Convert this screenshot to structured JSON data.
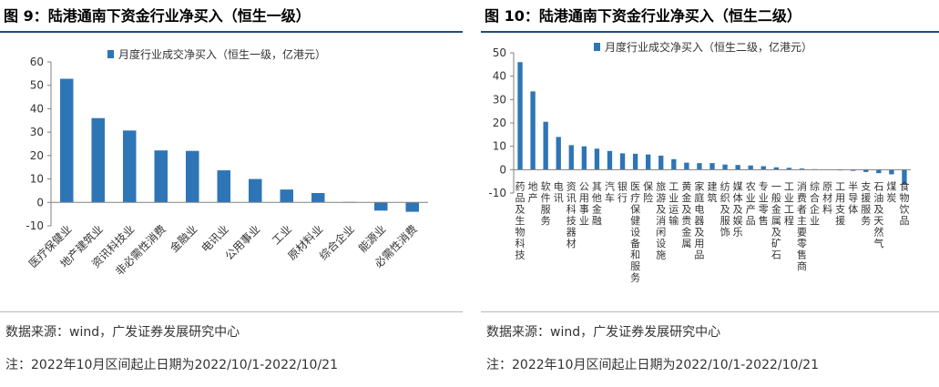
{
  "figure_left": {
    "title": "图 9：陆港通南下资金行业净买入（恒生一级）",
    "source": "数据来源：wind，广发证券发展研究中心",
    "note": "注：2022年10月区间起止日期为2022/10/1-2022/10/21"
  },
  "figure_right": {
    "title": "图 10：陆港通南下资金行业净买入（恒生二级）",
    "source": "数据来源：wind，广发证券发展研究中心",
    "note": "注：2022年10月区间起止日期为2022/10/1-2022/10/21"
  },
  "colors": {
    "bar": "#2e75b6",
    "axis": "#808080",
    "title_rule": "#1f4e79"
  },
  "chart_data": [
    {
      "type": "bar",
      "title": "",
      "xlabel": "",
      "ylabel": "",
      "legend": "top-center",
      "grid": false,
      "ylim": [
        -10,
        60
      ],
      "yticks": [
        -10,
        0,
        10,
        20,
        30,
        40,
        50,
        60
      ],
      "series": [
        {
          "name": "月度行业成交净买入（恒生一级，亿港元）"
        }
      ],
      "categories": [
        "医疗保健业",
        "地产建筑业",
        "资讯科技业",
        "非必需性消费",
        "金融业",
        "电讯业",
        "公用事业",
        "工业",
        "原材料业",
        "综合企业",
        "能源业",
        "必需性消费"
      ],
      "values": [
        52.8,
        36.0,
        30.7,
        22.2,
        22.0,
        13.7,
        10.0,
        5.5,
        4.0,
        0.2,
        -3.5,
        -4.0
      ]
    },
    {
      "type": "bar",
      "title": "",
      "xlabel": "",
      "ylabel": "",
      "legend": "top-center",
      "grid": false,
      "ylim": [
        -10,
        50
      ],
      "yticks": [
        -10,
        0,
        10,
        20,
        30,
        40,
        50
      ],
      "series": [
        {
          "name": "月度行业成交净买入（恒生二级，亿港元）"
        }
      ],
      "categories": [
        "药品及生物科技",
        "地产",
        "软件服务",
        "电讯",
        "资讯科技器材",
        "公用事业",
        "其他金融",
        "汽车",
        "银行",
        "医疗保健设备和服务",
        "保险",
        "旅游及消闲设施",
        "工业运输",
        "黄金及贵金属",
        "家庭电器及用品",
        "建筑",
        "纺织及服饰",
        "媒体及娱乐",
        "农业产品",
        "专业零售",
        "一般金属及矿石",
        "工业工程",
        "消费者主要零售商",
        "综合企业",
        "原材料",
        "工用支援",
        "半导体",
        "支援服务",
        "石油及天然气",
        "煤炭",
        "食物饮品"
      ],
      "values": [
        46.0,
        33.5,
        20.5,
        14.0,
        10.5,
        10.0,
        9.0,
        8.0,
        7.0,
        6.8,
        6.5,
        6.0,
        4.5,
        3.0,
        2.8,
        2.8,
        2.2,
        2.0,
        1.8,
        1.5,
        1.0,
        0.8,
        0.5,
        0.2,
        0.0,
        -0.2,
        -0.5,
        -1.0,
        -1.5,
        -2.0,
        -6.5
      ]
    }
  ]
}
